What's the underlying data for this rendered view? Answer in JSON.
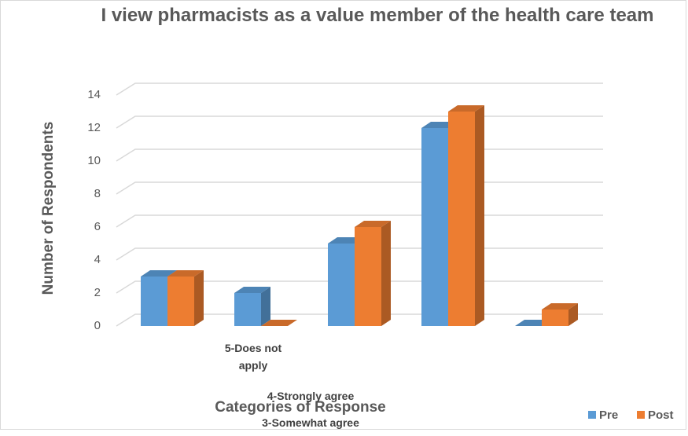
{
  "chart_data": {
    "type": "bar3d",
    "title": "I view pharmacists as a value member of the health care team",
    "y_label": "Number of Respondents",
    "x_label": "Categories of Response",
    "categories": [
      null,
      "5-Does not apply",
      "4-Strongly agree",
      "3-Somewhat agree",
      null
    ],
    "series": [
      {
        "name": "Pre",
        "color": "#5b9bd5",
        "values": [
          3,
          2,
          5,
          12,
          0
        ]
      },
      {
        "name": "Post",
        "color": "#ed7d31",
        "values": [
          3,
          0,
          6,
          13,
          1
        ]
      }
    ],
    "ylim": [
      0,
      14
    ],
    "yticks": [
      0,
      2,
      4,
      6,
      8,
      10,
      12,
      14
    ],
    "grid": true,
    "legend": "bottom-right"
  }
}
